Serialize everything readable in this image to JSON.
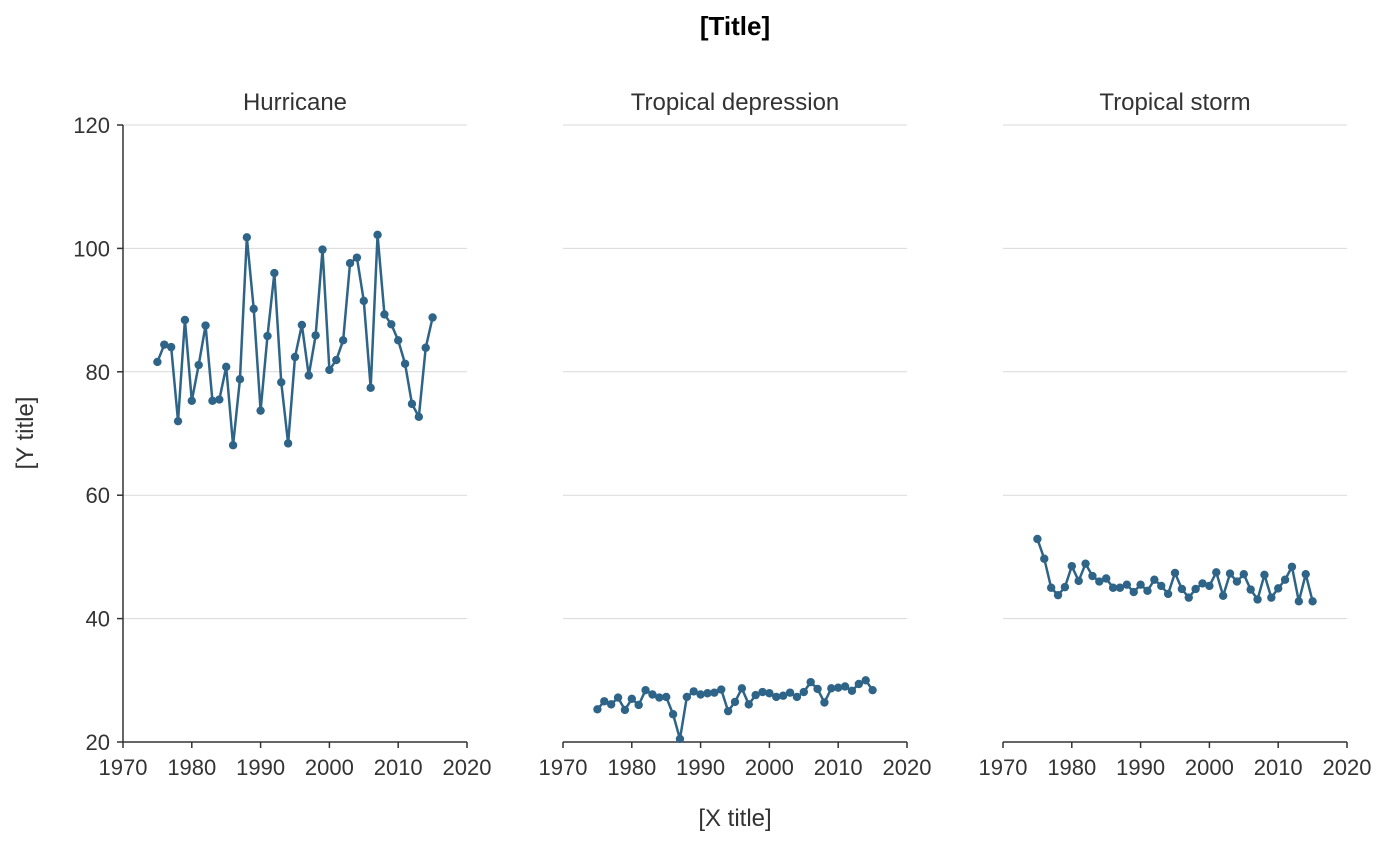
{
  "chart_data": {
    "type": "line",
    "title": "[Title]",
    "xlabel": "[X title]",
    "ylabel": "[Y title]",
    "xlim": [
      1970,
      2020
    ],
    "ylim": [
      20,
      120
    ],
    "x_ticks": [
      1970,
      1980,
      1990,
      2000,
      2010,
      2020
    ],
    "y_ticks": [
      20,
      40,
      60,
      80,
      100,
      120
    ],
    "grid": "horizontal",
    "color": "#2e6487",
    "markers": true,
    "x": [
      1975,
      1976,
      1977,
      1978,
      1979,
      1980,
      1981,
      1982,
      1983,
      1984,
      1985,
      1986,
      1987,
      1988,
      1989,
      1990,
      1991,
      1992,
      1993,
      1994,
      1995,
      1996,
      1997,
      1998,
      1999,
      2000,
      2001,
      2002,
      2003,
      2004,
      2005,
      2006,
      2007,
      2008,
      2009,
      2010,
      2011,
      2012,
      2013,
      2014,
      2015
    ],
    "panels": [
      {
        "name": "Hurricane",
        "values": [
          81.6,
          84.4,
          84.0,
          72.0,
          88.4,
          75.3,
          81.1,
          87.5,
          75.3,
          75.5,
          80.8,
          68.1,
          78.8,
          101.8,
          90.2,
          73.7,
          85.8,
          96.0,
          78.3,
          68.4,
          82.4,
          87.6,
          79.4,
          85.9,
          99.8,
          80.3,
          81.9,
          85.1,
          97.6,
          98.5,
          91.5,
          77.4,
          102.2,
          89.3,
          87.7,
          85.1,
          81.3,
          74.8,
          72.7,
          83.9,
          88.8
        ]
      },
      {
        "name": "Tropical depression",
        "values": [
          25.3,
          26.6,
          26.1,
          27.2,
          25.2,
          27.0,
          26.0,
          28.4,
          27.7,
          27.2,
          27.3,
          24.5,
          20.5,
          27.3,
          28.2,
          27.7,
          27.9,
          28.0,
          28.5,
          25.0,
          26.5,
          28.7,
          26.1,
          27.6,
          28.1,
          27.9,
          27.3,
          27.5,
          28.0,
          27.3,
          28.1,
          29.7,
          28.6,
          26.4,
          28.7,
          28.8,
          29.0,
          28.3,
          29.4,
          30.0,
          28.4
        ]
      },
      {
        "name": "Tropical storm",
        "values": [
          52.9,
          49.7,
          45.0,
          43.8,
          45.1,
          48.5,
          46.1,
          48.9,
          46.9,
          46.0,
          46.5,
          45.0,
          45.0,
          45.5,
          44.3,
          45.5,
          44.5,
          46.3,
          45.3,
          44.0,
          47.4,
          44.8,
          43.4,
          44.8,
          45.7,
          45.3,
          47.5,
          43.7,
          47.3,
          46.0,
          47.2,
          44.7,
          43.1,
          47.1,
          43.4,
          44.9,
          46.3,
          48.4,
          42.8,
          47.2,
          42.8
        ]
      }
    ]
  }
}
